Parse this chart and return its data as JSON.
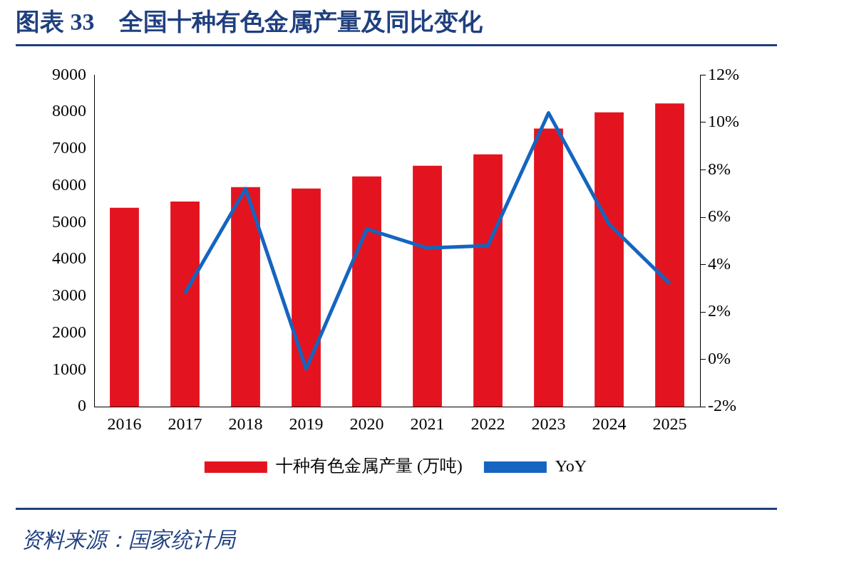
{
  "chart_data": {
    "type": "bar",
    "title": "图表 33　全国十种有色金属产量及同比变化",
    "categories": [
      "2016",
      "2017",
      "2018",
      "2019",
      "2020",
      "2021",
      "2022",
      "2023",
      "2024",
      "2025"
    ],
    "series": [
      {
        "name": "十种有色金属产量 (万吨)",
        "color": "#e3141f",
        "values": [
          5400,
          5570,
          5960,
          5920,
          6250,
          6540,
          6850,
          7550,
          7990,
          8230
        ]
      },
      {
        "name": "YoY",
        "type": "line",
        "axis": "y2",
        "color": "#1565c0",
        "values": [
          null,
          2.8,
          7.2,
          -0.4,
          5.5,
          4.7,
          4.8,
          10.4,
          5.7,
          3.2
        ]
      }
    ],
    "ylim": [
      0,
      9000
    ],
    "yticks": [
      0,
      1000,
      2000,
      3000,
      4000,
      5000,
      6000,
      7000,
      8000,
      9000
    ],
    "y2lim": [
      -2,
      12
    ],
    "y2ticks": [
      {
        "value": -2,
        "label": "-2%"
      },
      {
        "value": 0,
        "label": "0%"
      },
      {
        "value": 2,
        "label": "2%"
      },
      {
        "value": 4,
        "label": "4%"
      },
      {
        "value": 6,
        "label": "6%"
      },
      {
        "value": 8,
        "label": "8%"
      },
      {
        "value": 10,
        "label": "10%"
      },
      {
        "value": 12,
        "label": "12%"
      }
    ],
    "grid": false,
    "legend": "bottom",
    "marker": "none",
    "annotations": [
      "资料来源：国家统计局"
    ]
  }
}
